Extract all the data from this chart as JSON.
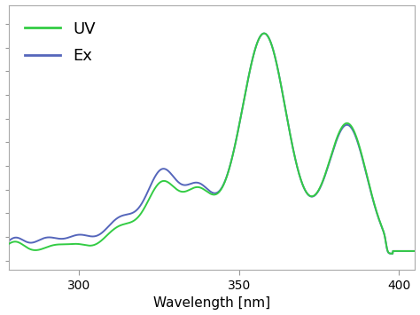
{
  "title": "",
  "xlabel": "Wavelength [nm]",
  "ylabel": "",
  "xlim": [
    278,
    405
  ],
  "ylim": [
    -0.04,
    1.08
  ],
  "xticks": [
    300,
    350,
    400
  ],
  "uv_color": "#33cc44",
  "ex_color": "#5566bb",
  "background_color": "#ffffff",
  "legend_labels": [
    "UV",
    "Ex"
  ],
  "legend_fontsize": 13,
  "tick_fontsize": 10,
  "xlabel_fontsize": 11
}
